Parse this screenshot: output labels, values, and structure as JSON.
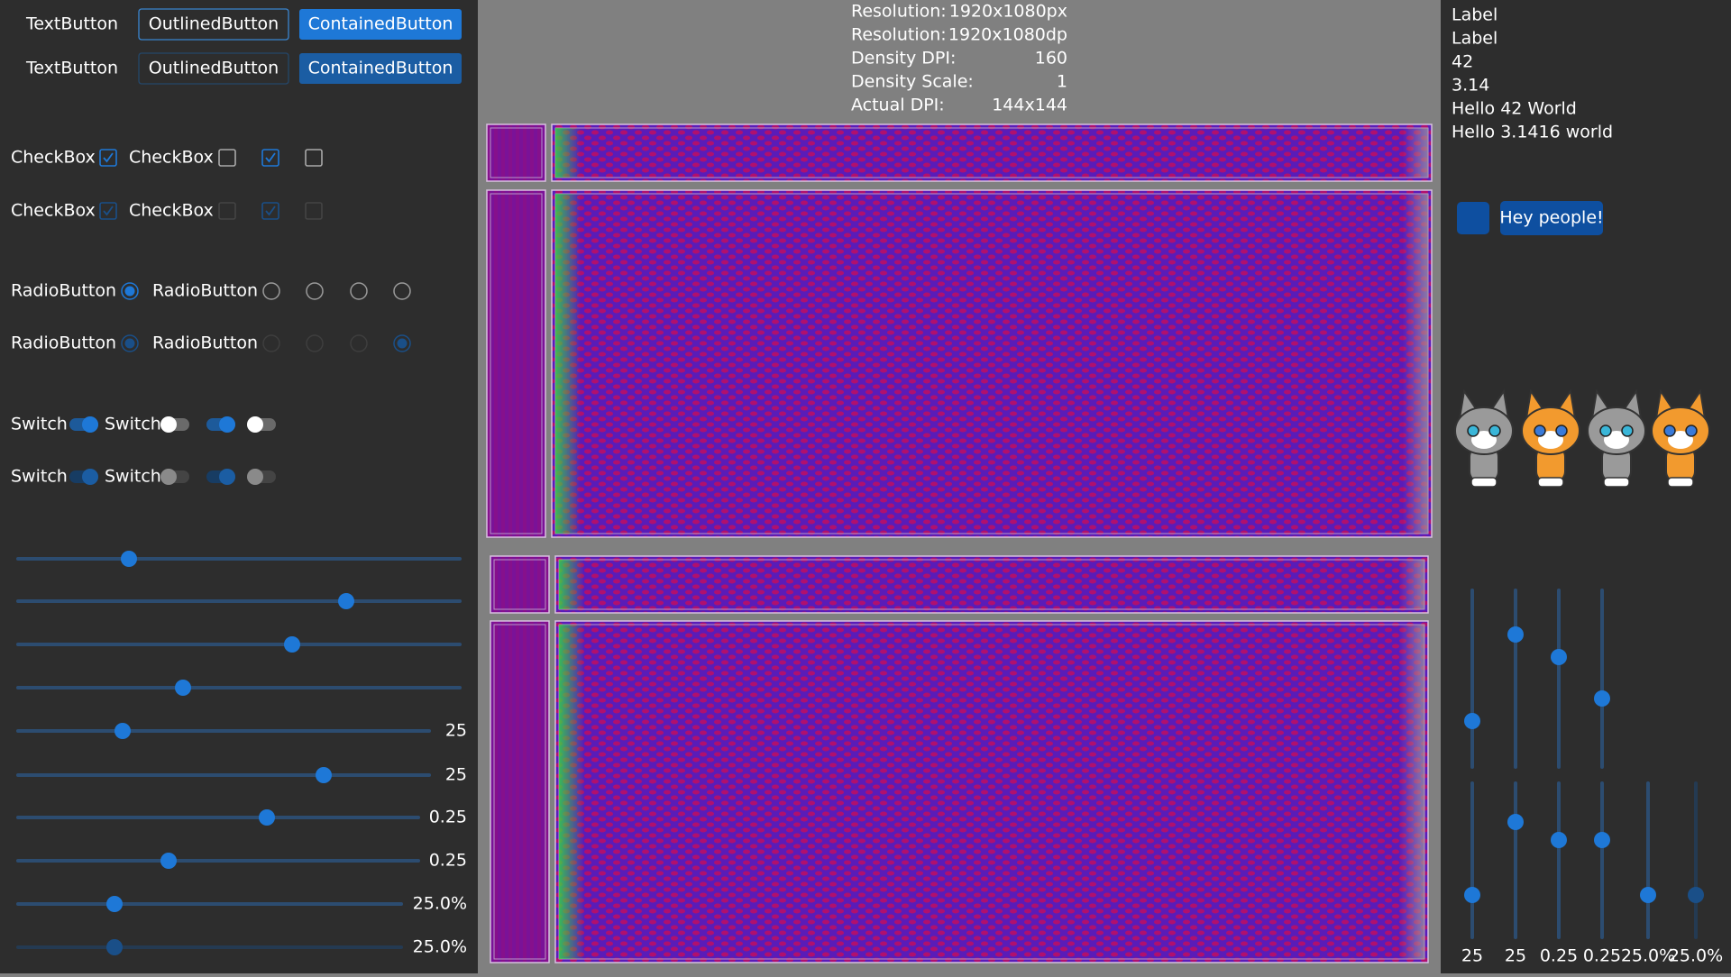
{
  "buttons": {
    "rows": [
      [
        "TextButton",
        "OutlinedButton",
        "ContainedButton"
      ],
      [
        "TextButton",
        "OutlinedButton",
        "ContainedButton"
      ]
    ]
  },
  "checkboxes": {
    "rows": [
      [
        "CheckBox",
        "CheckBox"
      ],
      [
        "CheckBox",
        "CheckBox"
      ]
    ]
  },
  "radios": {
    "rows": [
      [
        "RadioButton",
        "RadioButton"
      ],
      [
        "RadioButton",
        "RadioButton"
      ]
    ]
  },
  "switches": {
    "rows": [
      [
        "Switch",
        "Switch"
      ],
      [
        "Switch",
        "Switch"
      ]
    ]
  },
  "sliders": {
    "labels": [
      "25",
      "25",
      "0.25",
      "0.25",
      "25.0%",
      "25.0%"
    ]
  },
  "info": {
    "rows": [
      [
        "Resolution:",
        "1920x1080px"
      ],
      [
        "Resolution:",
        "1920x1080dp"
      ],
      [
        "Density DPI:",
        "160"
      ],
      [
        "Density Scale:",
        "1"
      ],
      [
        "Actual DPI:",
        "144x144"
      ]
    ]
  },
  "labels": [
    "Label",
    "Label",
    "42",
    "3.14",
    "Hello 42 World",
    "Hello 3.1416 world"
  ],
  "button": "Hey people!",
  "vertical_sliders": {
    "labels": [
      "25",
      "25",
      "0.25",
      "0.25",
      "25.0%",
      "25.0%"
    ]
  }
}
